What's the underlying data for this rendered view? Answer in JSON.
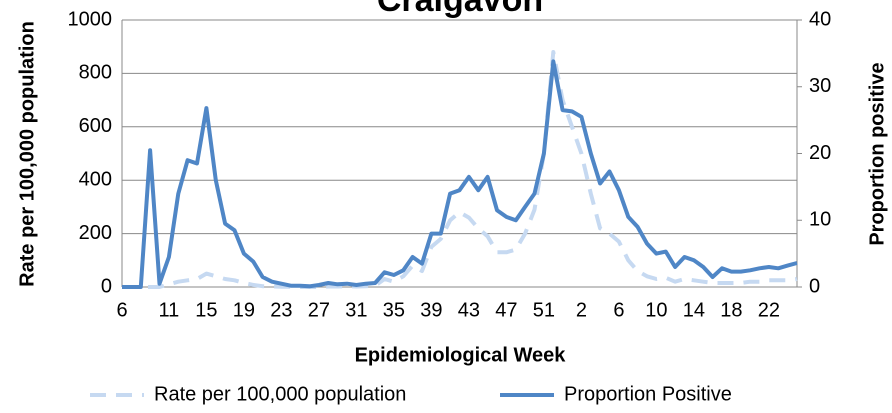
{
  "chart_data": {
    "type": "line",
    "title": "Craigavon",
    "xlabel": "Epidemiological Week",
    "ylabel": "Rate per 100,000 population",
    "y2label": "Proportion positive",
    "categories": [
      "6",
      null,
      null,
      null,
      null,
      "11",
      null,
      null,
      null,
      "15",
      null,
      null,
      null,
      "19",
      null,
      null,
      null,
      "23",
      null,
      null,
      null,
      "27",
      null,
      null,
      null,
      "31",
      null,
      null,
      null,
      "35",
      null,
      null,
      null,
      "39",
      null,
      null,
      null,
      "43",
      null,
      null,
      null,
      "47",
      null,
      null,
      null,
      "51",
      null,
      null,
      null,
      "2",
      null,
      null,
      null,
      "6",
      null,
      null,
      null,
      "10",
      null,
      null,
      null,
      "14",
      null,
      null,
      null,
      "18",
      null,
      null,
      null,
      "22",
      null,
      null,
      null
    ],
    "series": [
      {
        "name": "Rate per 100,000 population",
        "color": "#c6d9f1",
        "style": "dashed",
        "values": [
          0,
          0,
          0,
          0,
          0,
          10,
          20,
          25,
          30,
          50,
          40,
          30,
          25,
          15,
          8,
          3,
          2,
          1,
          1,
          0,
          0,
          0,
          2,
          2,
          3,
          2,
          3,
          5,
          30,
          20,
          40,
          80,
          60,
          150,
          180,
          250,
          280,
          260,
          220,
          190,
          130,
          130,
          140,
          200,
          290,
          500,
          880,
          700,
          600,
          500,
          350,
          220,
          200,
          170,
          100,
          60,
          40,
          30,
          35,
          20,
          30,
          25,
          20,
          15,
          15,
          15,
          15,
          20,
          20,
          25,
          25,
          25,
          30
        ]
      },
      {
        "name": "Proportion Positive",
        "color": "#4f86c6",
        "style": "solid",
        "axis": "y2",
        "values": [
          0,
          0,
          0,
          20.5,
          0.5,
          4.5,
          14,
          19,
          18.5,
          26.8,
          16,
          9.5,
          8.5,
          5,
          3.8,
          1.5,
          0.8,
          0.5,
          0.2,
          0.2,
          0.1,
          0.3,
          0.6,
          0.4,
          0.5,
          0.3,
          0.5,
          0.6,
          2.2,
          1.8,
          2.5,
          4.5,
          3.5,
          8,
          8,
          14,
          14.5,
          16.5,
          14.5,
          16.5,
          11.5,
          10.5,
          10,
          12,
          14,
          20,
          33.8,
          26.5,
          26.3,
          25.5,
          20,
          15.5,
          17.3,
          14.5,
          10.5,
          9,
          6.5,
          5,
          5.3,
          3,
          4.5,
          4,
          3,
          1.5,
          2.8,
          2.3,
          2.3,
          2.5,
          2.8,
          3,
          2.8,
          3.2,
          3.6
        ]
      }
    ],
    "ylim": [
      0,
      1000
    ],
    "yticks": [
      0,
      200,
      400,
      600,
      800,
      1000
    ],
    "y2lim": [
      0,
      40
    ],
    "y2ticks": [
      0,
      10,
      20,
      30,
      40
    ],
    "grid": true,
    "legend": "bottom"
  }
}
